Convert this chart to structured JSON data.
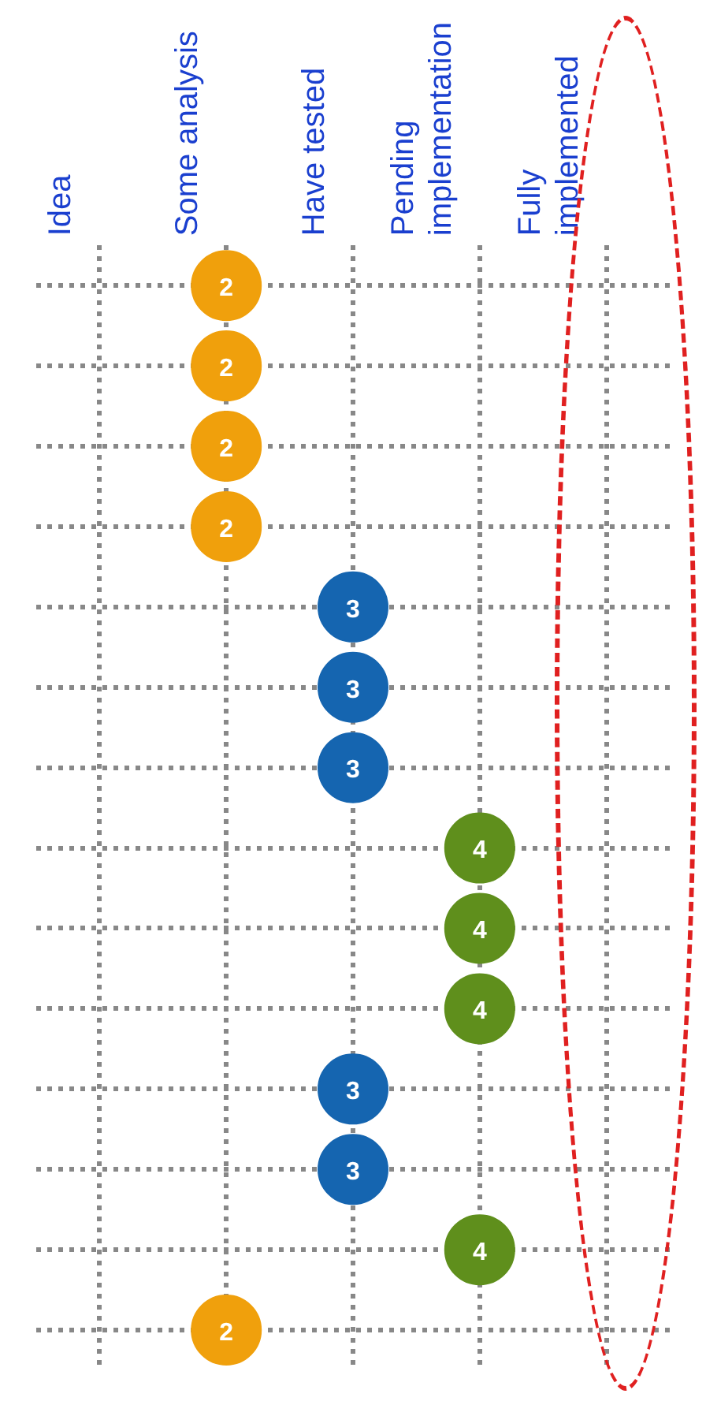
{
  "chart_data": {
    "type": "heatmap",
    "categories": [
      "Idea",
      "Some analysis",
      "Have tested",
      "Pending implementation",
      "Fully implemented"
    ],
    "y_categories": [
      null,
      null,
      null,
      null,
      null,
      null,
      null,
      null,
      null,
      null,
      null,
      null,
      null,
      null
    ],
    "cells": [
      [
        null,
        2,
        null,
        null,
        null
      ],
      [
        null,
        2,
        null,
        null,
        null
      ],
      [
        null,
        2,
        null,
        null,
        null
      ],
      [
        null,
        2,
        null,
        null,
        null
      ],
      [
        null,
        null,
        3,
        null,
        null
      ],
      [
        null,
        null,
        3,
        null,
        null
      ],
      [
        null,
        null,
        3,
        null,
        null
      ],
      [
        null,
        null,
        null,
        4,
        null
      ],
      [
        null,
        null,
        null,
        4,
        null
      ],
      [
        null,
        null,
        null,
        4,
        null
      ],
      [
        null,
        null,
        3,
        null,
        null
      ],
      [
        null,
        null,
        3,
        null,
        null
      ],
      [
        null,
        null,
        null,
        4,
        null
      ],
      [
        null,
        2,
        null,
        null,
        null
      ]
    ],
    "colors": [
      "#f0a00c",
      "#f0a00c",
      "#f0a00c",
      "#f0a00c",
      "#1565b0",
      "#1565b0",
      "#1565b0",
      "#5f8f1c",
      "#5f8f1c",
      "#5f8f1c",
      "#1565b0",
      "#1565b0",
      "#5f8f1c",
      "#f0a00c"
    ],
    "grid": true,
    "data_labels": true,
    "marker": "circle",
    "legend": false
  }
}
